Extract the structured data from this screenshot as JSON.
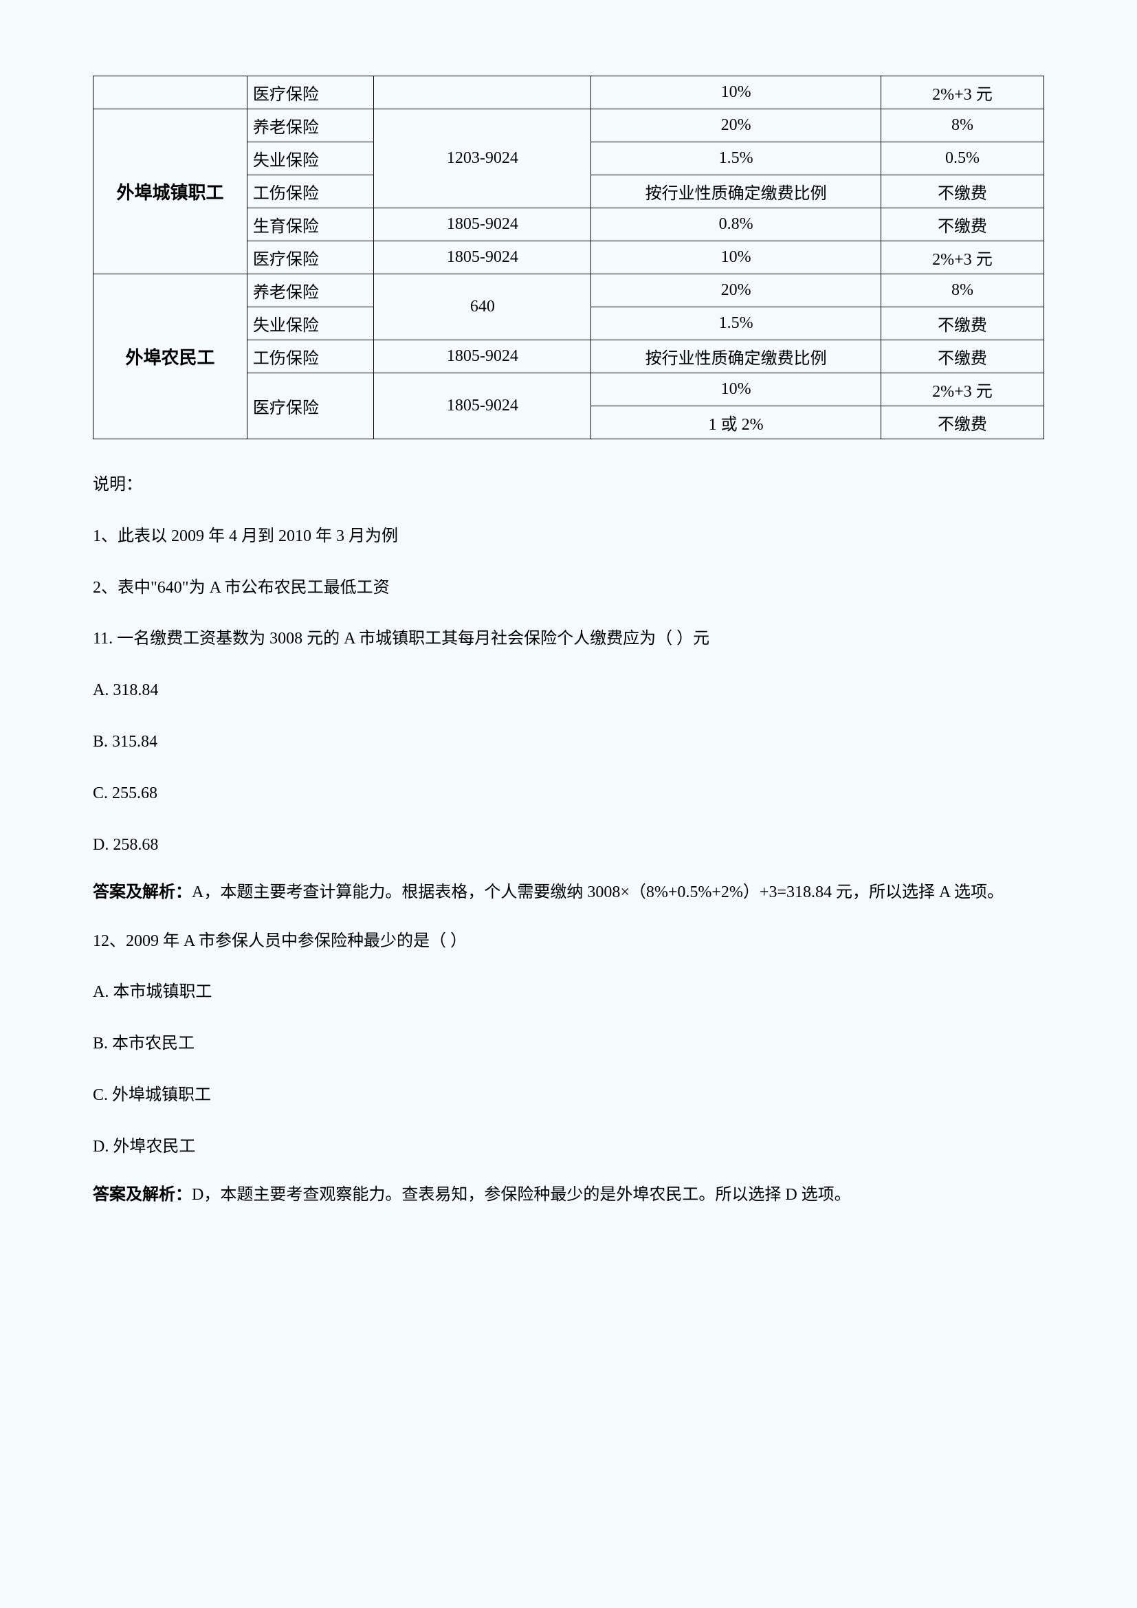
{
  "table": {
    "rows": [
      {
        "type": "医疗保险",
        "base": "",
        "employer": "10%",
        "personal": "2%+3 元"
      },
      {
        "category": "外埠城镇职工",
        "categoryRowspan": 5,
        "type": "养老保险",
        "base": "1203-9024",
        "baseRowspan": 3,
        "employer": "20%",
        "personal": "8%"
      },
      {
        "type": "失业保险",
        "employer": "1.5%",
        "personal": "0.5%"
      },
      {
        "type": "工伤保险",
        "employer": "按行业性质确定缴费比例",
        "personal": "不缴费"
      },
      {
        "type": "生育保险",
        "base": "1805-9024",
        "employer": "0.8%",
        "personal": "不缴费"
      },
      {
        "type": "医疗保险",
        "base": "1805-9024",
        "employer": "10%",
        "personal": "2%+3 元"
      },
      {
        "category": "外埠农民工",
        "categoryRowspan": 5,
        "type": "养老保险",
        "base": "640",
        "baseRowspan": 2,
        "employer": "20%",
        "personal": "8%"
      },
      {
        "type": "失业保险",
        "employer": "1.5%",
        "personal": "不缴费"
      },
      {
        "type": "工伤保险",
        "base": "1805-9024",
        "employer": "按行业性质确定缴费比例",
        "personal": "不缴费"
      },
      {
        "type": "医疗保险",
        "typeRowspan": 2,
        "base": "1805-9024",
        "baseRowspan": 2,
        "employer": "10%",
        "personal": "2%+3 元"
      },
      {
        "employer": "1 或 2%",
        "personal": "不缴费"
      }
    ]
  },
  "notes": {
    "title": "说明：",
    "n1": "1、此表以 2009 年 4 月到 2010 年 3 月为例",
    "n2": "2、表中\"640\"为 A 市公布农民工最低工资"
  },
  "q11": {
    "question": "11. 一名缴费工资基数为 3008 元的 A 市城镇职工其每月社会保险个人缴费应为（ ）元",
    "a": "A. 318.84",
    "b": "B. 315.84",
    "c": "C. 255.68",
    "d": "D. 258.68",
    "answerLabel": "答案及解析：",
    "answerText": "A，本题主要考查计算能力。根据表格，个人需要缴纳 3008×（8%+0.5%+2%）+3=318.84 元，所以选择 A 选项。"
  },
  "q12": {
    "question": "12、2009 年 A 市参保人员中参保险种最少的是（ ）",
    "a": "A. 本市城镇职工",
    "b": "B. 本市农民工",
    "c": "C. 外埠城镇职工",
    "d": "D. 外埠农民工",
    "answerLabel": "答案及解析：",
    "answerText": "D，本题主要考查观察能力。查表易知，参保险种最少的是外埠农民工。所以选择 D 选项。"
  }
}
